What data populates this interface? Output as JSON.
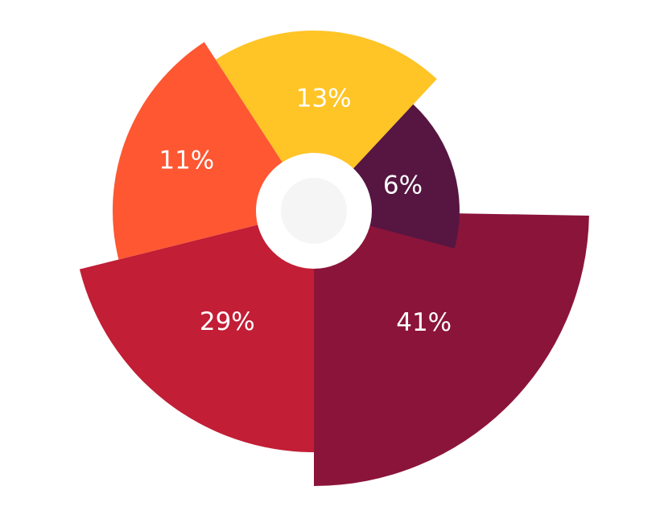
{
  "chart_data": {
    "type": "pie",
    "variant": "rose",
    "title": "",
    "slices": [
      {
        "label": "41%",
        "value": 41,
        "color": "#8b143a"
      },
      {
        "label": "29%",
        "value": 29,
        "color": "#c21e36"
      },
      {
        "label": "11%",
        "value": 11,
        "color": "#fe5732"
      },
      {
        "label": "13%",
        "value": 13,
        "color": "#ffc426"
      },
      {
        "label": "6%",
        "value": 6,
        "color": "#561641"
      }
    ],
    "center_hole": true,
    "center_colors": {
      "ring": "#ffffff",
      "inner": "#f5f5f5"
    }
  }
}
